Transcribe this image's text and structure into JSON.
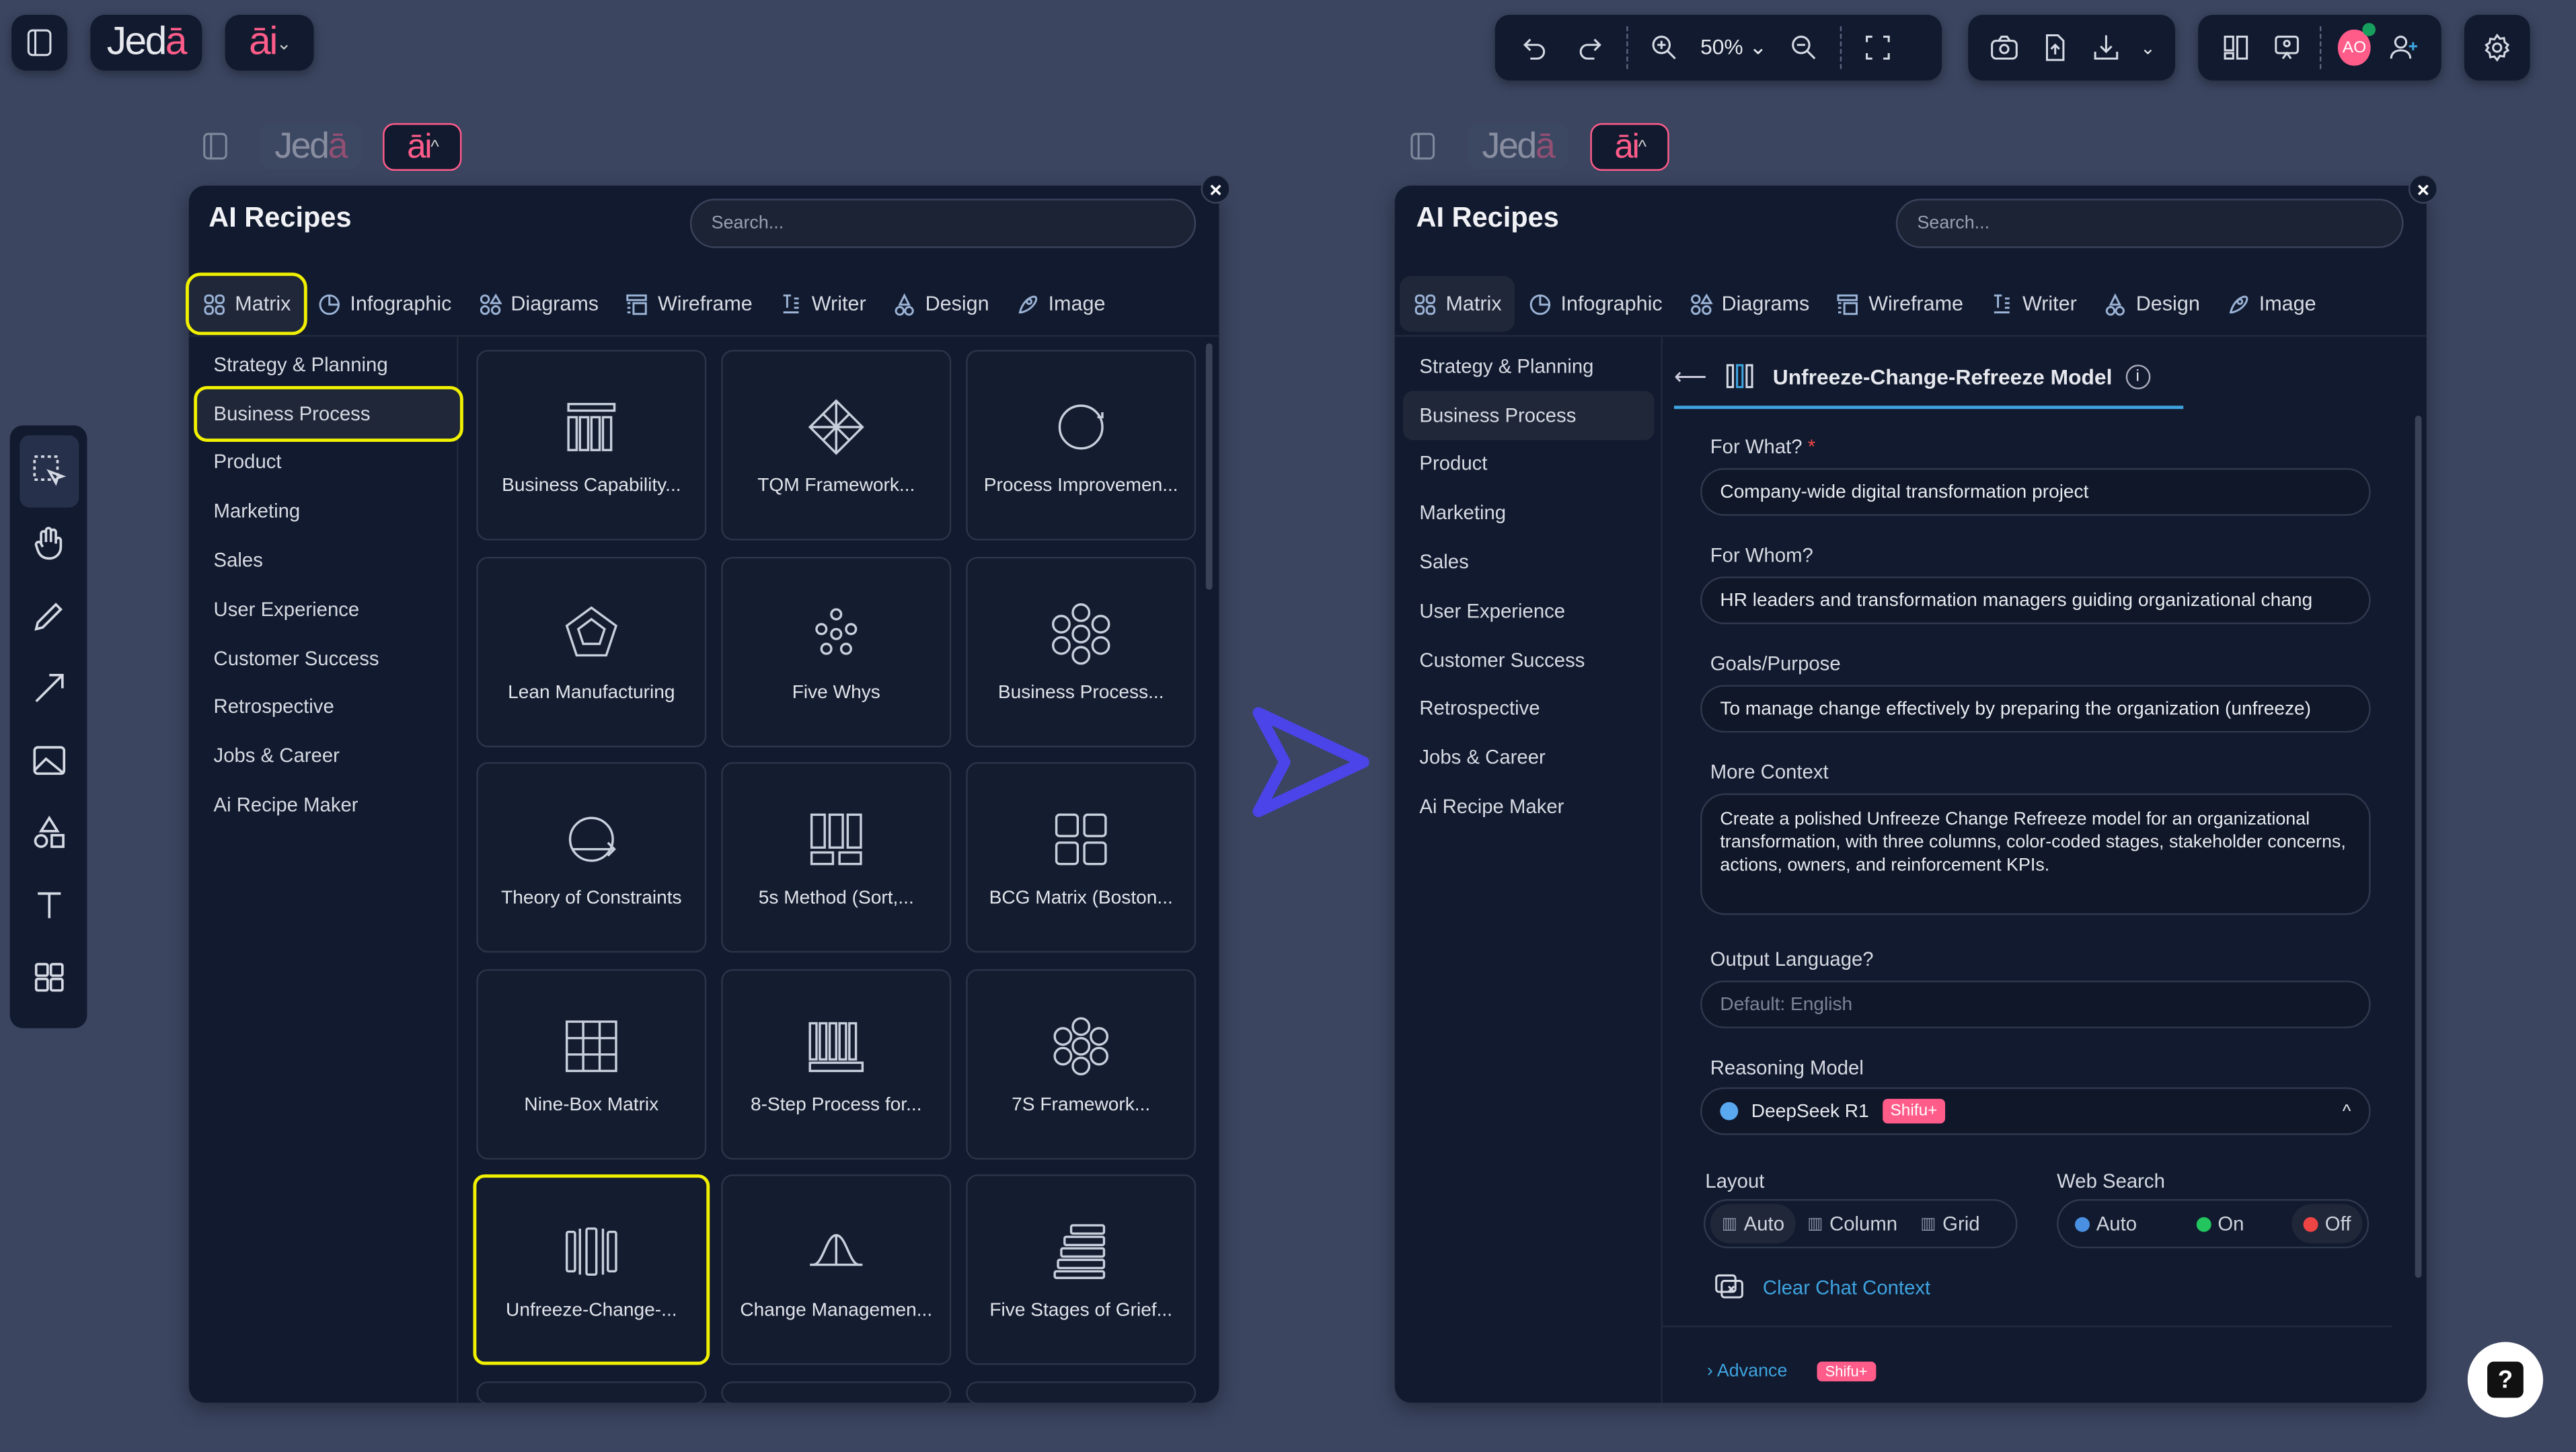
{
  "topbar": {
    "brand": {
      "jed": "Jed",
      "a": "ā"
    },
    "ai_menu": "āi",
    "zoom_level": "50%",
    "avatar_initials": "AO",
    "colors": {
      "accent": "#ff5c8a",
      "background": "#3b4560",
      "panel": "#111a2e",
      "highlight": "#f0f000",
      "link": "#3fa3e0"
    }
  },
  "panel_left": {
    "title": "AI Recipes",
    "search_placeholder": "Search...",
    "tabs": [
      {
        "label": "Matrix",
        "icon": "matrix-icon"
      },
      {
        "label": "Infographic",
        "icon": "infographic-icon"
      },
      {
        "label": "Diagrams",
        "icon": "diagrams-icon"
      },
      {
        "label": "Wireframe",
        "icon": "wireframe-icon"
      },
      {
        "label": "Writer",
        "icon": "writer-icon"
      },
      {
        "label": "Design",
        "icon": "design-icon"
      },
      {
        "label": "Image",
        "icon": "image-icon"
      }
    ],
    "categories": [
      "Strategy & Planning",
      "Business Process",
      "Product",
      "Marketing",
      "Sales",
      "User Experience",
      "Customer Success",
      "Retrospective",
      "Jobs & Career",
      "Ai Recipe Maker"
    ],
    "selected_category": "Business Process",
    "cards": [
      "Business Capability...",
      "TQM Framework...",
      "Process Improvemen...",
      "Lean Manufacturing",
      "Five Whys",
      "Business Process...",
      "Theory of Constraints",
      "5s Method (Sort,...",
      "BCG Matrix (Boston...",
      "Nine-Box Matrix",
      "8-Step Process for...",
      "7S Framework...",
      "Unfreeze-Change-...",
      "Change Managemen...",
      "Five Stages of Grief..."
    ],
    "selected_card": "Unfreeze-Change-..."
  },
  "panel_right": {
    "title": "AI Recipes",
    "search_placeholder": "Search...",
    "recipe_title": "Unfreeze-Change-Refreeze Model",
    "form": {
      "for_what_label": "For What?",
      "required_mark": "*",
      "for_what_value": "Company-wide digital transformation project",
      "for_whom_label": "For Whom?",
      "for_whom_value": "HR leaders and transformation managers guiding organizational chang",
      "goals_label": "Goals/Purpose",
      "goals_value": "To manage change effectively by preparing the organization (unfreeze)",
      "context_label": "More Context",
      "context_value": "Create a polished Unfreeze Change Refreeze model for an organizational transformation, with three columns, color-coded stages, stakeholder concerns, actions, owners, and reinforcement KPIs.",
      "language_label": "Output Language?",
      "language_placeholder": "Default: English",
      "model_label": "Reasoning Model",
      "model_value": "DeepSeek R1",
      "model_badge": "Shifu+",
      "layout_label": "Layout",
      "layout_options": [
        "Auto",
        "Column",
        "Grid"
      ],
      "layout_selected": "Auto",
      "web_label": "Web Search",
      "web_options": [
        {
          "label": "Auto",
          "color": "#4a90e2"
        },
        {
          "label": "On",
          "color": "#22c55e"
        },
        {
          "label": "Off",
          "color": "#ef4444"
        }
      ],
      "web_selected": "Off",
      "clear_label": "Clear Chat Context",
      "advance_label": "Advance",
      "advance_badge": "Shifu+"
    }
  }
}
